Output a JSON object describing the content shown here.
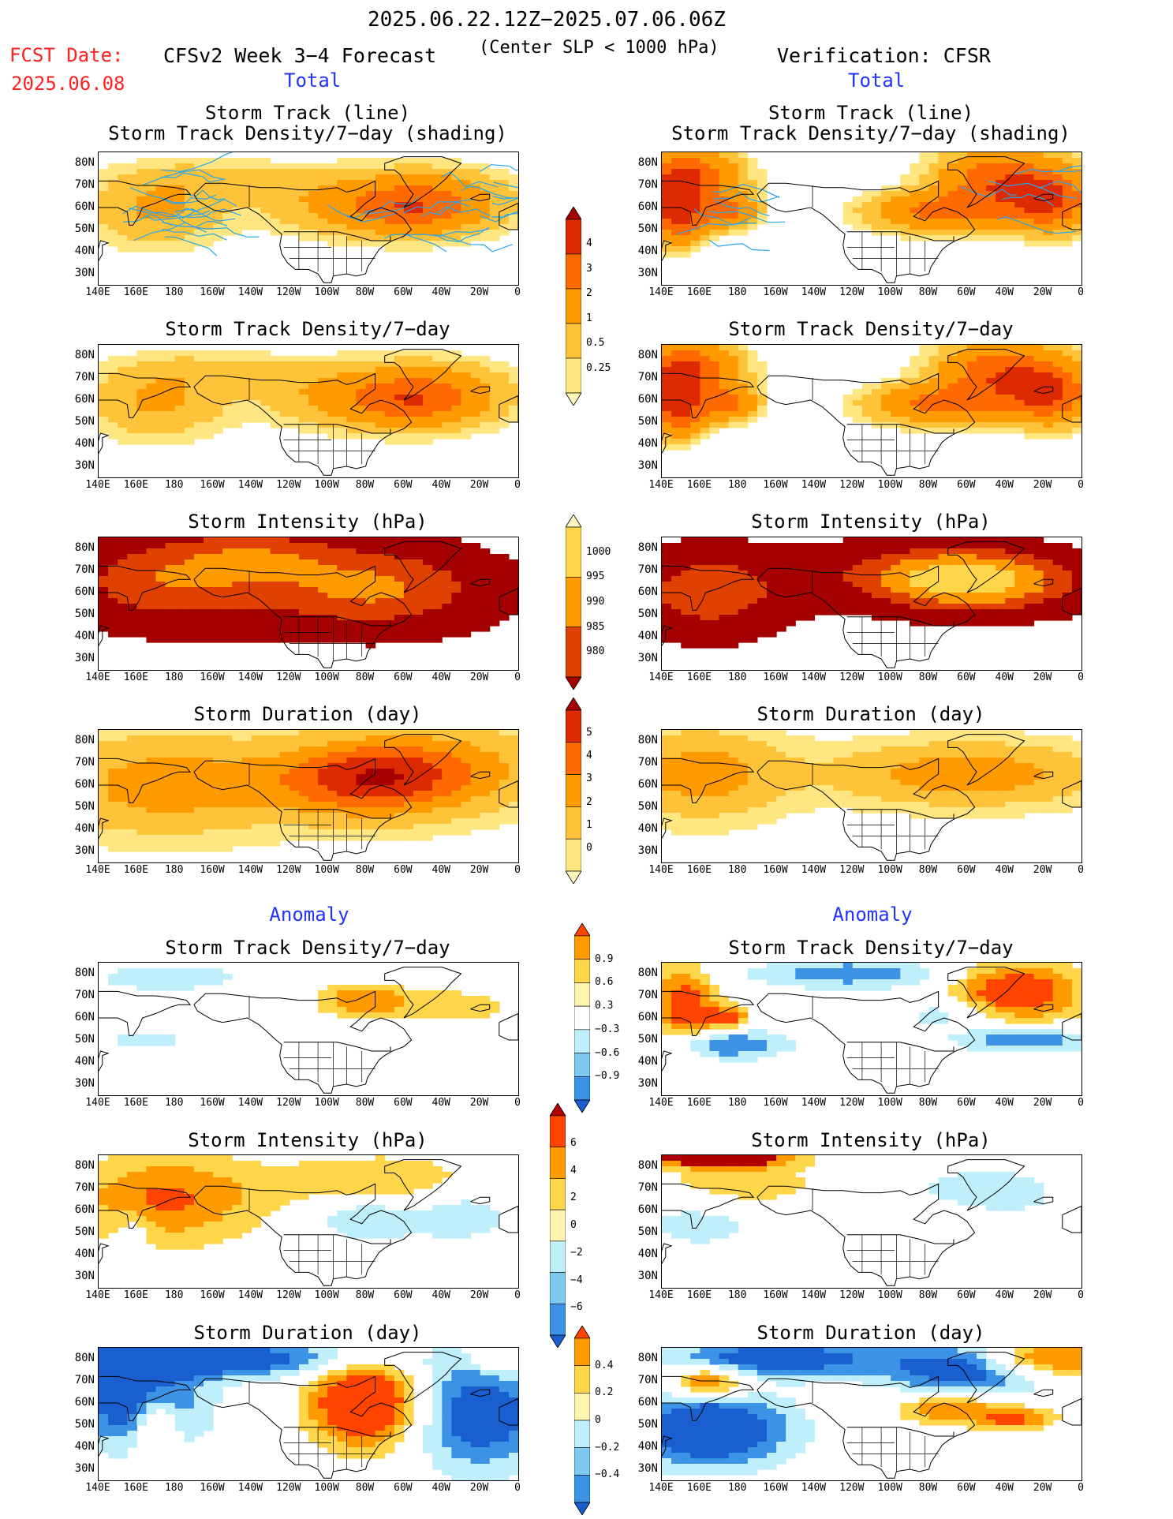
{
  "header": {
    "title": "2025.06.22.12Z−2025.07.06.06Z",
    "subtitle": "(Center SLP < 1000 hPa)",
    "fcst_label": "FCST Date:",
    "fcst_date": "2025.06.08",
    "left_title": "CFSv2 Week 3−4 Forecast",
    "right_title": "Verification: CFSR"
  },
  "sections": {
    "total": "Total",
    "anomaly": "Anomaly"
  },
  "axes": {
    "lat_labels": [
      "80N",
      "70N",
      "60N",
      "50N",
      "40N",
      "30N"
    ],
    "lon_labels": [
      "140E",
      "160E",
      "180",
      "160W",
      "140W",
      "120W",
      "100W",
      "80W",
      "60W",
      "40W",
      "20W",
      "0"
    ]
  },
  "panels": {
    "row1_title_1": "Storm Track (line)",
    "row1_title_2": "Storm Track Density/7−day (shading)",
    "row2_title": "Storm Track Density/7−day",
    "row3_title": "Storm Intensity (hPa)",
    "row4_title": "Storm Duration (day)",
    "row5_title": "Storm Track Density/7−day",
    "row6_title": "Storm Intensity (hPa)",
    "row7_title": "Storm Duration (day)"
  },
  "colorbars": {
    "density": {
      "labels": [
        "4",
        "3",
        "2",
        "1",
        "0.5",
        "0.25"
      ],
      "colors": [
        "#a50000",
        "#dd2a00",
        "#ff6a00",
        "#ff9a00",
        "#ffc33a",
        "#ffe680",
        "#fff8b8"
      ]
    },
    "intensity": {
      "labels": [
        "1000",
        "995",
        "990",
        "985",
        "980"
      ],
      "colors": [
        "#fff6c0",
        "#ffd54a",
        "#ff9a00",
        "#e04000",
        "#a50000"
      ]
    },
    "duration": {
      "labels": [
        "5",
        "4",
        "3",
        "2",
        "1",
        "0"
      ],
      "colors": [
        "#a50000",
        "#dd2a00",
        "#ff6a00",
        "#ff9a00",
        "#ffc33a",
        "#ffe680",
        "#fff8b8"
      ]
    },
    "anom_density": {
      "labels": [
        "0.9",
        "0.6",
        "0.3",
        "−0.3",
        "−0.6",
        "−0.9"
      ],
      "colors": [
        "#ff4400",
        "#ff9a00",
        "#ffd54a",
        "#fff3b0",
        "#ffffff",
        "#bfeffa",
        "#7ccaf2",
        "#3c92e4",
        "#1a5fd0"
      ]
    },
    "anom_intensity": {
      "labels": [
        "6",
        "4",
        "2",
        "0",
        "−2",
        "−4",
        "−6"
      ],
      "colors": [
        "#b00000",
        "#ff4400",
        "#ff9a00",
        "#ffd54a",
        "#fff3b0",
        "#bfeffa",
        "#7ccaf2",
        "#3c92e4",
        "#1a5fd0"
      ]
    },
    "anom_duration": {
      "labels": [
        "0.4",
        "0.2",
        "0",
        "−0.2",
        "−0.4"
      ],
      "colors": [
        "#ff4400",
        "#ff9a00",
        "#ffd54a",
        "#fff3b0",
        "#bfeffa",
        "#7ccaf2",
        "#3c92e4",
        "#1a5fd0"
      ]
    }
  },
  "colors": {
    "fcst_red": "#ff2020",
    "section_blue": "#2233ff",
    "track_line": "#2aa5e8"
  }
}
